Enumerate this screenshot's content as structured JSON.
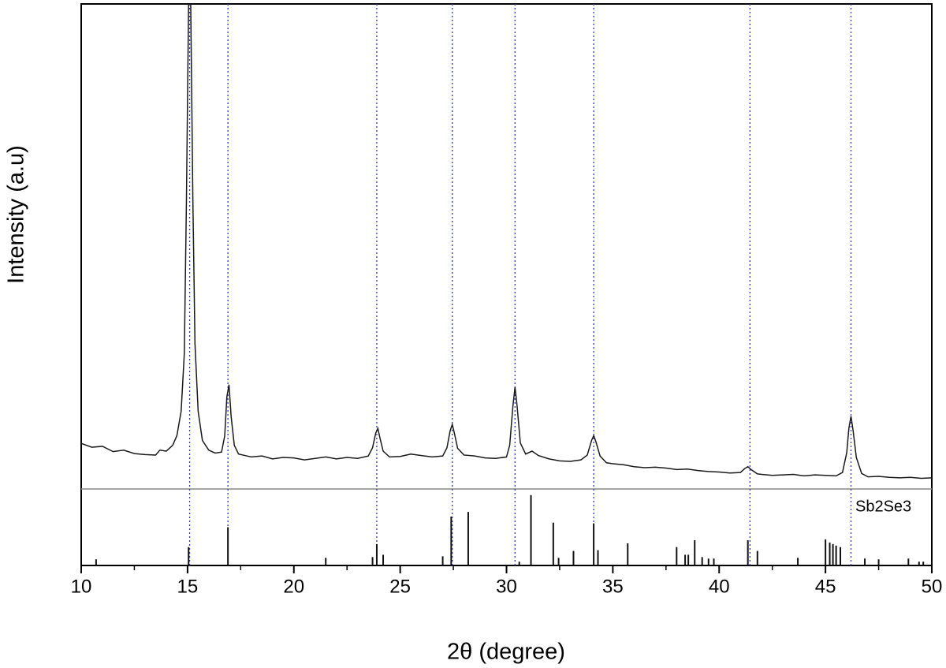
{
  "chart_data": [
    {
      "type": "line",
      "x_label": "2θ (degree)",
      "y_label": "Intensity (a.u)",
      "xlim": [
        10,
        50
      ],
      "xticks": [
        10,
        15,
        20,
        25,
        30,
        35,
        40,
        45,
        50
      ],
      "xminorticks": [
        12.5,
        17.5,
        22.5,
        27.5,
        32.5,
        37.5,
        42.5,
        47.5
      ],
      "ylim": [
        0,
        100
      ],
      "color": "#1a1a1a",
      "x": [
        10,
        10.5,
        11,
        11.5,
        12,
        12.5,
        13,
        13.5,
        13.7,
        14,
        14.3,
        14.5,
        14.7,
        14.85,
        14.95,
        15.05,
        15.15,
        15.25,
        15.35,
        15.5,
        15.7,
        16,
        16.3,
        16.6,
        16.75,
        16.85,
        16.95,
        17.05,
        17.2,
        17.4,
        17.7,
        18,
        18.5,
        19,
        19.5,
        20,
        20.5,
        21,
        21.5,
        22,
        22.5,
        23,
        23.5,
        23.7,
        23.85,
        23.95,
        24.05,
        24.2,
        24.5,
        25,
        25.5,
        26,
        26.5,
        27,
        27.2,
        27.35,
        27.45,
        27.55,
        27.7,
        28,
        28.5,
        29,
        29.5,
        30,
        30.15,
        30.3,
        30.4,
        30.5,
        30.65,
        30.9,
        31.2,
        31.5,
        32,
        32.5,
        33,
        33.5,
        33.8,
        34,
        34.1,
        34.2,
        34.4,
        34.7,
        35,
        35.5,
        36,
        36.5,
        37,
        37.5,
        38,
        38.5,
        39,
        39.5,
        40,
        40.5,
        41,
        41.2,
        41.35,
        41.5,
        41.8,
        42,
        42.5,
        43,
        43.5,
        44,
        44.5,
        45,
        45.5,
        45.8,
        46,
        46.1,
        46.2,
        46.3,
        46.45,
        46.7,
        47,
        47.5,
        48,
        48.5,
        49,
        49.5,
        50
      ],
      "values": [
        9.4,
        8.6,
        8.8,
        7.7,
        8.0,
        7.3,
        7.1,
        7.0,
        8.0,
        7.8,
        9.0,
        11.0,
        16,
        28,
        60,
        100,
        100,
        60,
        30,
        16,
        10,
        8.0,
        7.4,
        7.6,
        11,
        19,
        21.5,
        15,
        9,
        7.2,
        6.9,
        6.6,
        6.8,
        6.2,
        6.5,
        6.4,
        6.0,
        6.3,
        6.6,
        6.2,
        6.5,
        6.3,
        6.8,
        8.5,
        11.5,
        12.5,
        10.5,
        7.8,
        6.6,
        6.7,
        7.2,
        6.9,
        6.6,
        6.8,
        8.5,
        12,
        13.3,
        11.5,
        8.4,
        7.0,
        6.8,
        6.4,
        6.3,
        6.6,
        9,
        17,
        21,
        17,
        9.5,
        7.2,
        7.8,
        6.9,
        6.2,
        5.8,
        5.7,
        6.0,
        7.0,
        10,
        11,
        9.8,
        6.8,
        5.4,
        5.2,
        5.0,
        4.6,
        4.4,
        4.5,
        4.3,
        4.0,
        4.1,
        3.8,
        3.6,
        3.5,
        3.3,
        3.4,
        4.2,
        4.6,
        4.0,
        3.1,
        3.0,
        2.8,
        2.9,
        3.0,
        2.7,
        2.9,
        2.8,
        2.7,
        3.4,
        7.5,
        12.5,
        15,
        12,
        6.5,
        3.2,
        2.5,
        2.6,
        2.4,
        2.3,
        2.4,
        2.2,
        2.3
      ],
      "peak_markers": {
        "color": "#3333cc",
        "x": [
          15.1,
          16.9,
          23.9,
          27.45,
          30.4,
          34.1,
          41.45,
          46.2
        ]
      }
    },
    {
      "type": "stem",
      "label": "Sb2Se3",
      "xlim": [
        10,
        50
      ],
      "ylim": [
        0,
        100
      ],
      "color": "#111111",
      "x": [
        10.7,
        15.05,
        16.9,
        21.5,
        23.7,
        23.9,
        24.2,
        27.0,
        27.4,
        28.2,
        30.6,
        31.15,
        32.2,
        32.45,
        33.15,
        34.1,
        34.3,
        35.7,
        38.0,
        38.4,
        38.55,
        38.85,
        39.2,
        39.5,
        39.75,
        41.35,
        41.8,
        43.7,
        45.0,
        45.2,
        45.35,
        45.5,
        45.7,
        46.85,
        47.5,
        48.9,
        49.4,
        49.6
      ],
      "values": [
        8,
        24,
        50,
        10,
        11,
        28,
        14,
        12,
        64,
        70,
        5,
        92,
        56,
        10,
        19,
        55,
        20,
        29,
        24,
        14,
        14,
        33,
        11,
        9,
        9,
        33,
        19,
        10,
        34,
        30,
        28,
        26,
        24,
        9,
        8,
        9,
        5,
        5
      ]
    }
  ]
}
